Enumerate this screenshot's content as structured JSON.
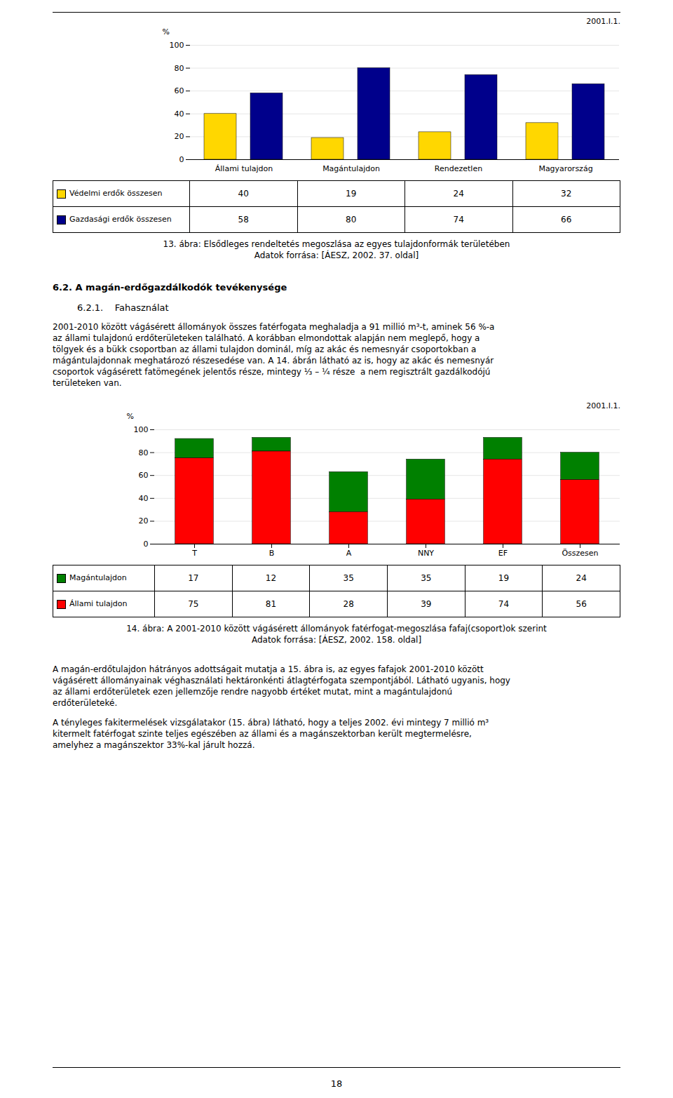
{
  "chart_data": [
    {
      "type": "bar",
      "title": "13. ábra: Elsődleges rendeltetés megoszlása az egyes tulajdonformák területében",
      "subtitle": "Adatok forrása: [ÁESZ, 2002. 37. oldal]",
      "ylabel": "%",
      "annotations": [
        {
          "text": "2001.I.1."
        }
      ],
      "categories": [
        "Állami tulajdon",
        "Magántulajdon",
        "Rendezetlen",
        "Magyarország"
      ],
      "series": [
        {
          "name": "Védelmi erdők összesen",
          "values": [
            40,
            19,
            24,
            32
          ],
          "color": "#FFD700"
        },
        {
          "name": "Gazdasági erdők összesen",
          "values": [
            58,
            80,
            74,
            66
          ],
          "color": "#00008B"
        }
      ],
      "ylim": [
        0,
        100
      ],
      "yticks": [
        0,
        20,
        40,
        60,
        80,
        100
      ],
      "grid": true
    },
    {
      "type": "bar",
      "stacked": true,
      "title": "14. ábra: A 2001-2010 között vágásérett állományok fatérfogat-megoszlása fafaj(csoport)ok szerint",
      "subtitle": "Adatok forrása: [ÁESZ, 2002. 158. oldal]",
      "ylabel": "%",
      "annotations": [
        {
          "text": "2001.I.1."
        }
      ],
      "categories": [
        "T",
        "B",
        "A",
        "NNY",
        "EF",
        "Összesen"
      ],
      "series": [
        {
          "name": "Magántulajdon",
          "values": [
            17,
            12,
            35,
            35,
            19,
            24
          ],
          "color": "#008000"
        },
        {
          "name": "Állami tulajdon",
          "values": [
            75,
            81,
            28,
            39,
            74,
            56
          ],
          "color": "#FF0000"
        }
      ],
      "ylim": [
        0,
        100
      ],
      "yticks": [
        0,
        20,
        40,
        60,
        80,
        100
      ],
      "grid": true
    }
  ],
  "section_title": "6.2.  A magán-erdőgazdálkodók tevékenysége",
  "subsection_title": "6.2.1.    Fahasználat",
  "paragraph1_lines": [
    "2001-2010 között vágásérett állományok összes fatérfogata meghaladja a 91 millió m³-t, aminek 56 %-a",
    "az állami tulajdonú erdőterületeken található. A korábban elmondottak alapján nem meglepő, hogy a",
    "tölgyek és a bükk csoportban az állami tulajdon dominál, míg az akác és nemesnyár csoportokban a",
    "mágántulajdonnak meghatározó részesedése van. A 14. ábrán látható az is, hogy az akác és nemesnyár",
    "csoportok vágásérett fatömegének jelentős része, mintegy ¹⁄₃ – ¼ része  a nem regisztrált gazdálkodójú",
    "területeken van."
  ],
  "paragraph2_lines": [
    "A magán-erdőtulajdon hátrányos adottságait mutatja a 15. ábra is, az egyes fafajok 2001-2010 között",
    "vágásérett állományainak véghasználati hektáronkénti átlagtérfogata szempontjából. Látható ugyanis, hogy",
    "az állami erdőterületek ezen jellemzője rendre nagyobb értéket mutat, mint a magántulajdonú",
    "erdőterületeké."
  ],
  "paragraph3_lines": [
    "A tényleges fakitermelések vizsgálatakor (15. ábra) látható, hogy a teljes 2002. évi mintegy 7 millió m³",
    "kitermelt fatérfogat szinte teljes egészében az állami és a magánszektorban került megtermelésre,",
    "amelyhez a magánszektor 33%-kal járult hozzá."
  ],
  "page_number": "18"
}
